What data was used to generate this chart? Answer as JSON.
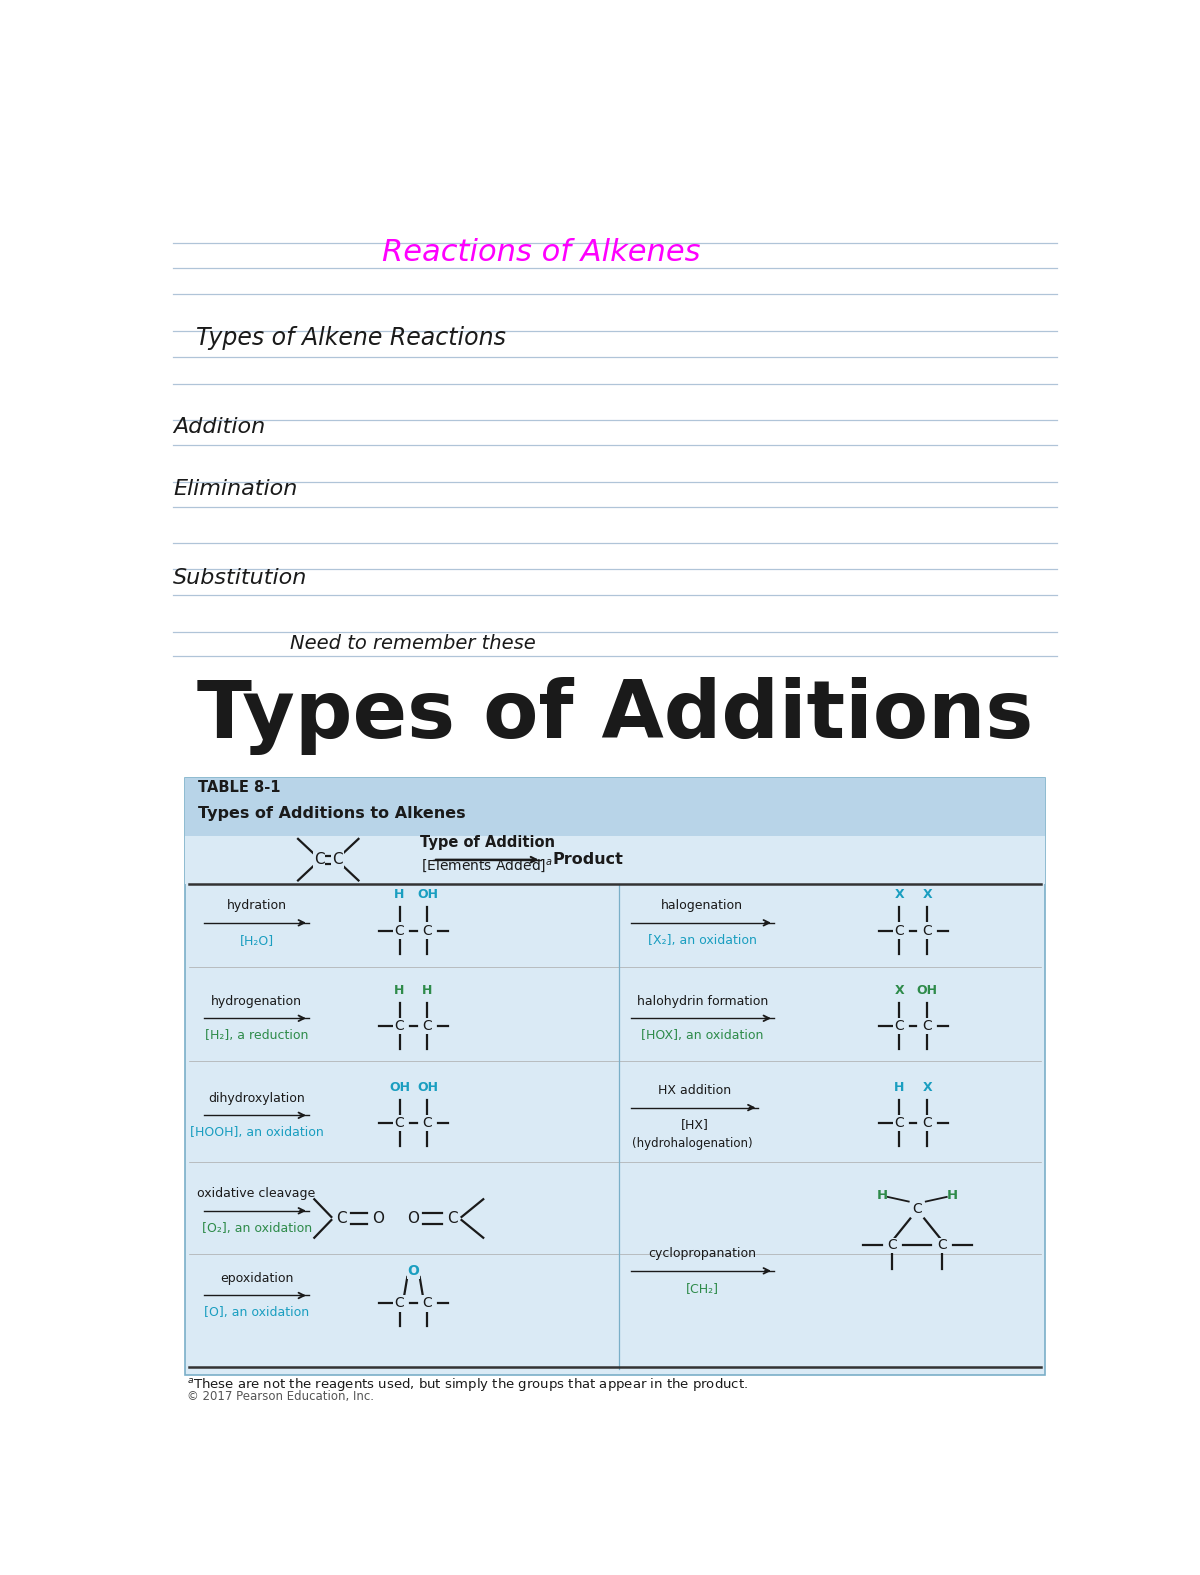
{
  "bg_color": "#ffffff",
  "lined_paper_color": "#c8d8e8",
  "table_bg_color": "#daeaf5",
  "table_header_bg": "#b8d4e8",
  "title_handwritten": "Reactions of Alkenes",
  "title_color": "#ff00ff",
  "subtitle1": "Types of Alkene Reactions",
  "label1": "Addition",
  "label2": "Elimination",
  "label3": "Substitution",
  "note_text": "Need to remember these",
  "main_title": "Types of Additions",
  "table_title": "TABLE 8-1",
  "table_subtitle": "Types of Additions to Alkenes",
  "footnote": "ᴀThese are not the reagents used, but simply the groups that appear in the product.",
  "copyright": "© 2017 Pearson Education, Inc.",
  "teal_color": "#1a9ec0",
  "green_color": "#2e8b4a",
  "dark_color": "#1a1a1a"
}
